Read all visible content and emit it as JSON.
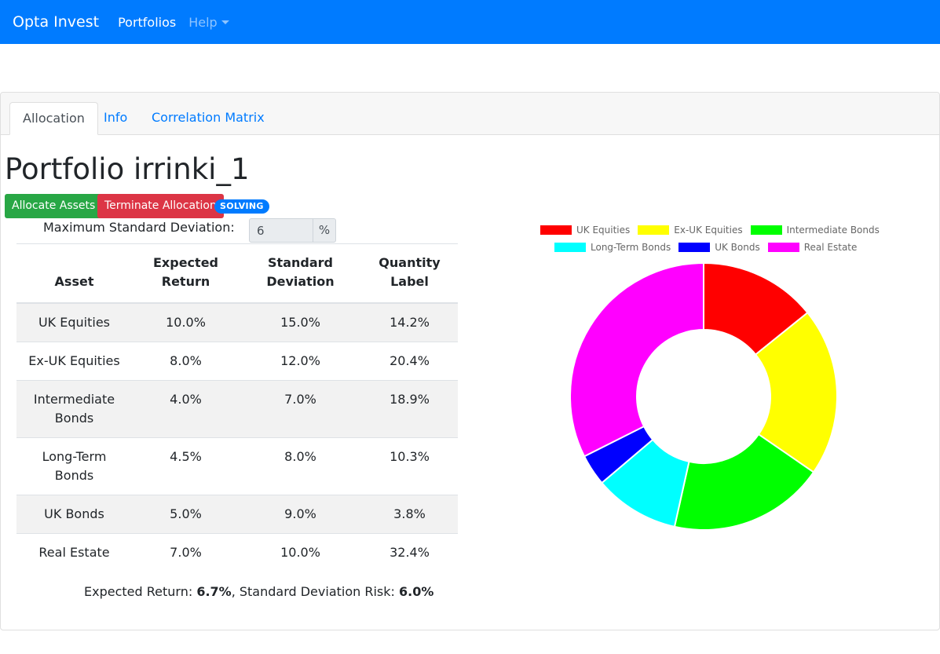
{
  "navbar": {
    "brand": "Opta Invest",
    "portfolios": "Portfolios",
    "help": "Help"
  },
  "tabs": [
    {
      "label": "Allocation",
      "active": true
    },
    {
      "label": "Info",
      "active": false
    },
    {
      "label": "Correlation Matrix",
      "active": false
    }
  ],
  "portfolio": {
    "title": "Portfolio irrinki_1",
    "allocate_button": "Allocate Assets",
    "terminate_button": "Terminate Allocation",
    "status_badge": "SOLVING",
    "max_sd_label": "Maximum Standard Deviation:",
    "max_sd_value": "6",
    "max_sd_unit": "%"
  },
  "table": {
    "headers": {
      "asset": "Asset",
      "expected_return": "Expected Return",
      "standard_deviation": "Standard Deviation",
      "quantity": "Quantity Label"
    },
    "rows": [
      {
        "asset": "UK Equities",
        "ret": "10.0%",
        "sd": "15.0%",
        "qty": "14.2%"
      },
      {
        "asset": "Ex-UK Equities",
        "ret": "8.0%",
        "sd": "12.0%",
        "qty": "20.4%"
      },
      {
        "asset": "Intermediate Bonds",
        "ret": "4.0%",
        "sd": "7.0%",
        "qty": "18.9%"
      },
      {
        "asset": "Long-Term Bonds",
        "ret": "4.5%",
        "sd": "8.0%",
        "qty": "10.3%"
      },
      {
        "asset": "UK Bonds",
        "ret": "5.0%",
        "sd": "9.0%",
        "qty": "3.8%"
      },
      {
        "asset": "Real Estate",
        "ret": "7.0%",
        "sd": "10.0%",
        "qty": "32.4%"
      }
    ]
  },
  "summary": {
    "return_label": "Expected Return: ",
    "return_value": "6.7%",
    "risk_label": ", Standard Deviation Risk: ",
    "risk_value": "6.0%"
  },
  "chart_data": {
    "type": "pie",
    "style": "doughnut",
    "legend_position": "top",
    "categories": [
      "UK Equities",
      "Ex-UK Equities",
      "Intermediate Bonds",
      "Long-Term Bonds",
      "UK Bonds",
      "Real Estate"
    ],
    "values": [
      14.2,
      20.4,
      18.9,
      10.3,
      3.8,
      32.4
    ],
    "colors": [
      "#ff0000",
      "#ffff00",
      "#00ff00",
      "#00ffff",
      "#0000ff",
      "#ff00ff"
    ]
  }
}
